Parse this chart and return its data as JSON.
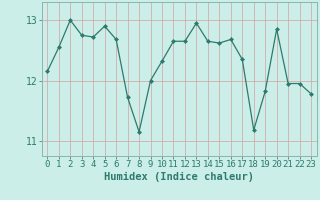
{
  "x_values": [
    0,
    1,
    2,
    3,
    4,
    5,
    6,
    7,
    8,
    9,
    10,
    11,
    12,
    13,
    14,
    15,
    16,
    17,
    18,
    19,
    20,
    21,
    22,
    23
  ],
  "y_values": [
    12.15,
    12.55,
    13.0,
    12.75,
    12.72,
    12.9,
    12.68,
    11.72,
    11.15,
    12.0,
    12.32,
    12.65,
    12.65,
    12.95,
    12.65,
    12.62,
    12.68,
    12.35,
    11.18,
    11.82,
    12.85,
    11.95,
    11.95,
    11.78
  ],
  "line_color": "#2d7a6e",
  "marker": "D",
  "marker_size": 2.0,
  "bg_color": "#cceee8",
  "grid_color": "#b0d8d4",
  "xlabel": "Humidex (Indice chaleur)",
  "xlim": [
    -0.5,
    23.5
  ],
  "ylim": [
    10.75,
    13.3
  ],
  "yticks": [
    11,
    12,
    13
  ],
  "xticks": [
    0,
    1,
    2,
    3,
    4,
    5,
    6,
    7,
    8,
    9,
    10,
    11,
    12,
    13,
    14,
    15,
    16,
    17,
    18,
    19,
    20,
    21,
    22,
    23
  ],
  "linewidth": 0.9,
  "tick_color": "#2d7a6e",
  "spine_color": "#8ab5ae",
  "tick_fontsize": 6.5,
  "xlabel_fontsize": 7.5
}
